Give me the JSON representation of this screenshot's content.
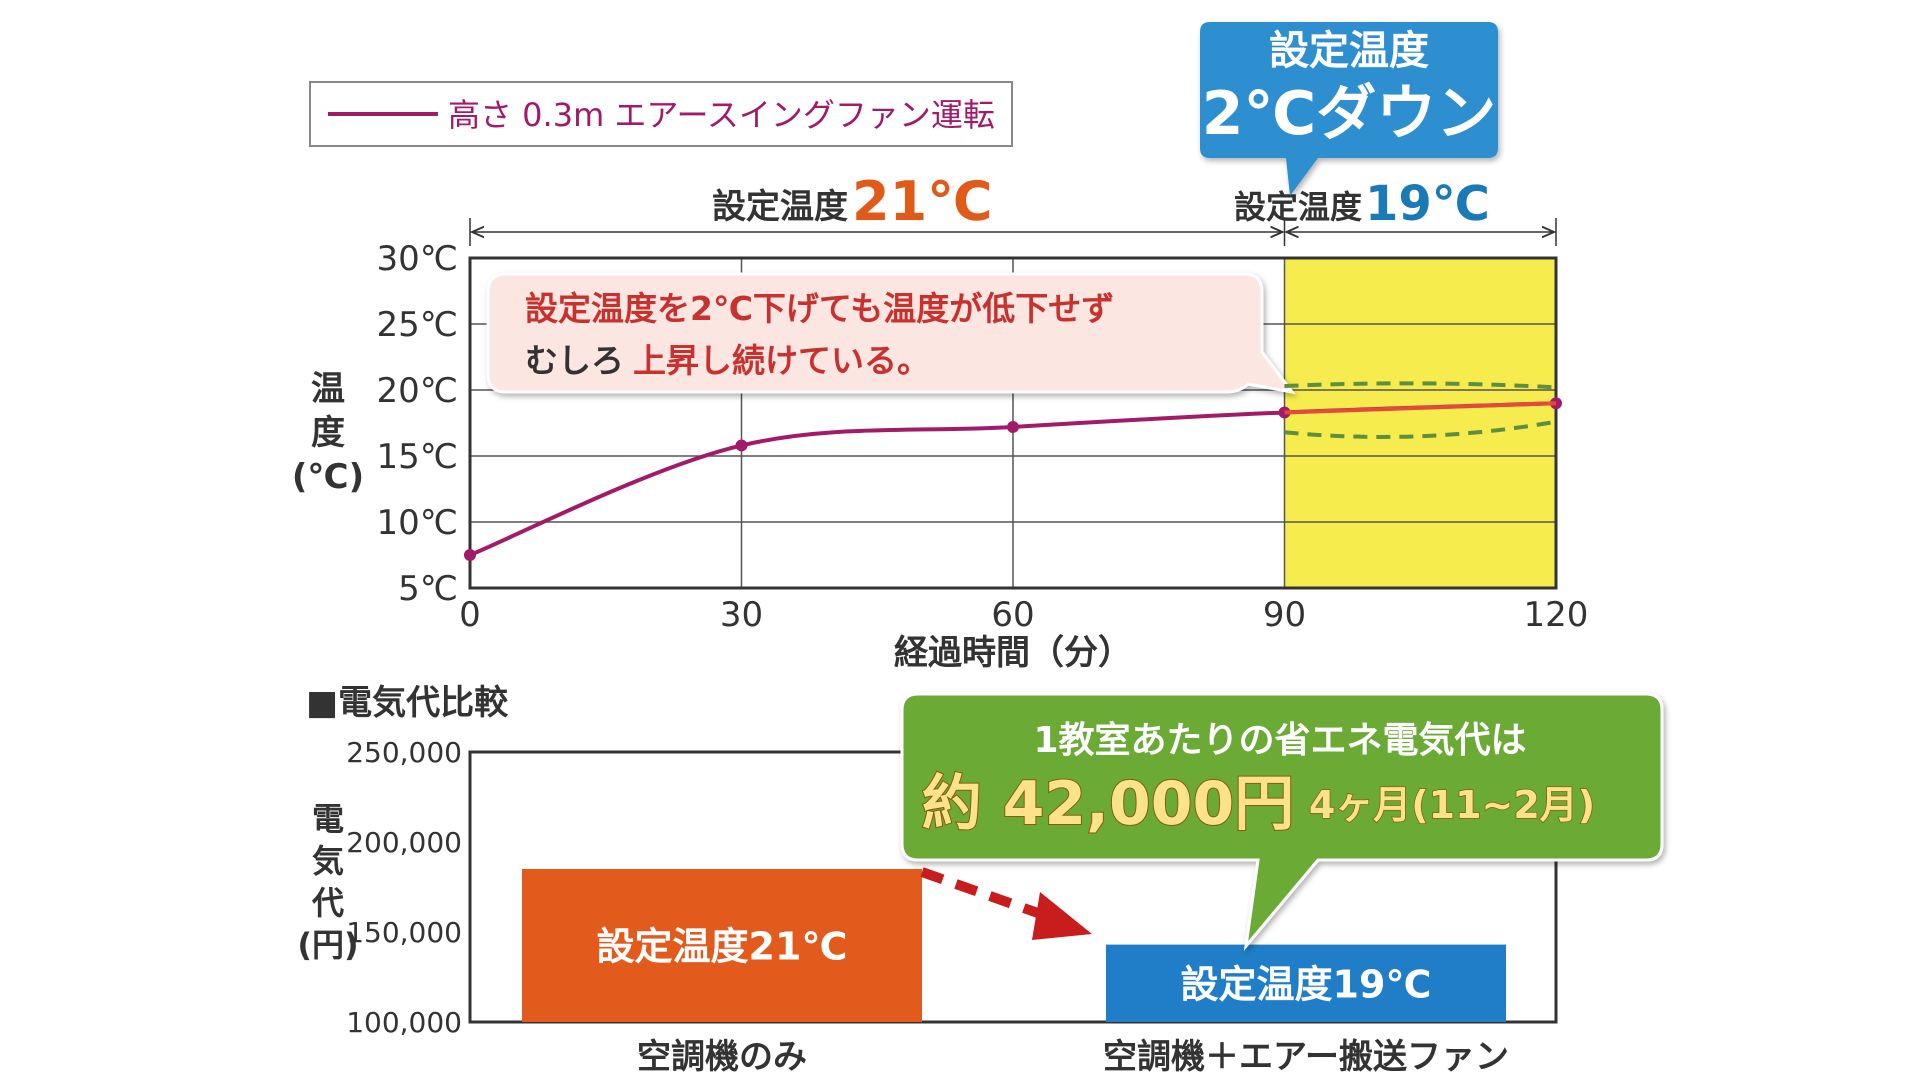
{
  "chart_data": [
    {
      "type": "line",
      "legend": "高さ 0.3m エアースイングファン運転",
      "legend_position": "top-left",
      "xlabel": "経過時間（分）",
      "ylabel_lines": [
        "温",
        "度",
        "(℃)"
      ],
      "x_ticks": [
        "0",
        "30",
        "60",
        "90",
        "120"
      ],
      "y_ticks": [
        "5℃",
        "10℃",
        "15℃",
        "20℃",
        "25℃",
        "30℃"
      ],
      "xlim": [
        0,
        120
      ],
      "ylim": [
        5,
        30
      ],
      "grid": true,
      "series": [
        {
          "x": [
            0,
            30,
            60,
            90,
            120
          ],
          "y": [
            7.5,
            15.8,
            17.2,
            18.3,
            19
          ],
          "color": "#a21b6b"
        }
      ],
      "envelope": {
        "upper": {
          "x": [
            90,
            105,
            120
          ],
          "y": [
            20.3,
            20.5,
            20.2
          ]
        },
        "lower": {
          "x": [
            90,
            105,
            120
          ],
          "y": [
            16.8,
            16.5,
            17.6
          ]
        },
        "color": "#5c8f3e"
      },
      "highlight": {
        "x": [
          90,
          120
        ],
        "color": "#f6ec4d"
      },
      "phase_1": {
        "prefix": "設定温度",
        "value": "21℃",
        "range": [
          0,
          90
        ],
        "value_color": "#e05a1a"
      },
      "phase_2": {
        "prefix": "設定温度",
        "value": "19℃",
        "range": [
          90,
          120
        ],
        "value_color": "#1a7ab8"
      },
      "callout_down": {
        "line1": "設定温度",
        "line2": "2℃ダウン",
        "color": "#2d8fd0"
      },
      "callout_note": {
        "line1": "設定温度を2℃下げても温度が低下せず",
        "line2_a": "むしろ",
        "line2_b": "上昇し続けている。",
        "color": "#c8322e"
      }
    },
    {
      "type": "bar",
      "title": "■電気代比較",
      "ylabel_lines": [
        "電",
        "気",
        "代",
        "(円)"
      ],
      "y_ticks": [
        "100,000",
        "150,000",
        "200,000",
        "250,000"
      ],
      "ylim": [
        100000,
        250000
      ],
      "grid": false,
      "categories": [
        "空調機のみ",
        "空調機＋エアー搬送ファン"
      ],
      "values": [
        185000,
        143000
      ],
      "bar_labels": [
        "設定温度21℃",
        "設定温度19℃"
      ],
      "colors": [
        "#e25a1c",
        "#1f7ec7"
      ],
      "callout": {
        "line1": "1教室あたりの省エネ電気代は",
        "line2_big": "約 42,000円",
        "line2_small": "4ヶ月(11~2月)",
        "color": "#6aaa35"
      }
    }
  ]
}
